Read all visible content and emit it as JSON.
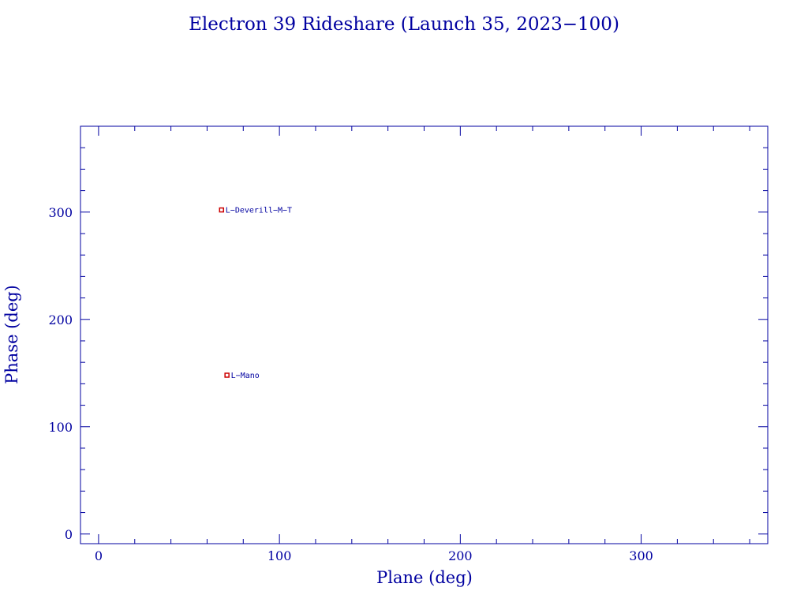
{
  "chart_data": {
    "type": "scatter",
    "title": "Electron 39 Rideshare (Launch 35, 2023−100)",
    "xlabel": "Plane (deg)",
    "ylabel": "Phase (deg)",
    "xlim": [
      -10,
      370
    ],
    "ylim": [
      -9,
      380
    ],
    "x_ticks": [
      0,
      100,
      200,
      300
    ],
    "y_ticks": [
      0,
      100,
      200,
      300
    ],
    "x_tick_labels": [
      "0",
      "100",
      "200",
      "300"
    ],
    "y_tick_labels": [
      "0",
      "100",
      "200",
      "300"
    ],
    "x_minor_step": 20,
    "y_minor_step": 20,
    "grid": false,
    "colors": {
      "axes": "#0000a0",
      "marker": "#cc0000",
      "text": "#0000a0"
    },
    "points": [
      {
        "label": "L−Deverill−M−T",
        "x": 68,
        "y": 302
      },
      {
        "label": "L−Mano",
        "x": 71,
        "y": 148
      }
    ]
  }
}
